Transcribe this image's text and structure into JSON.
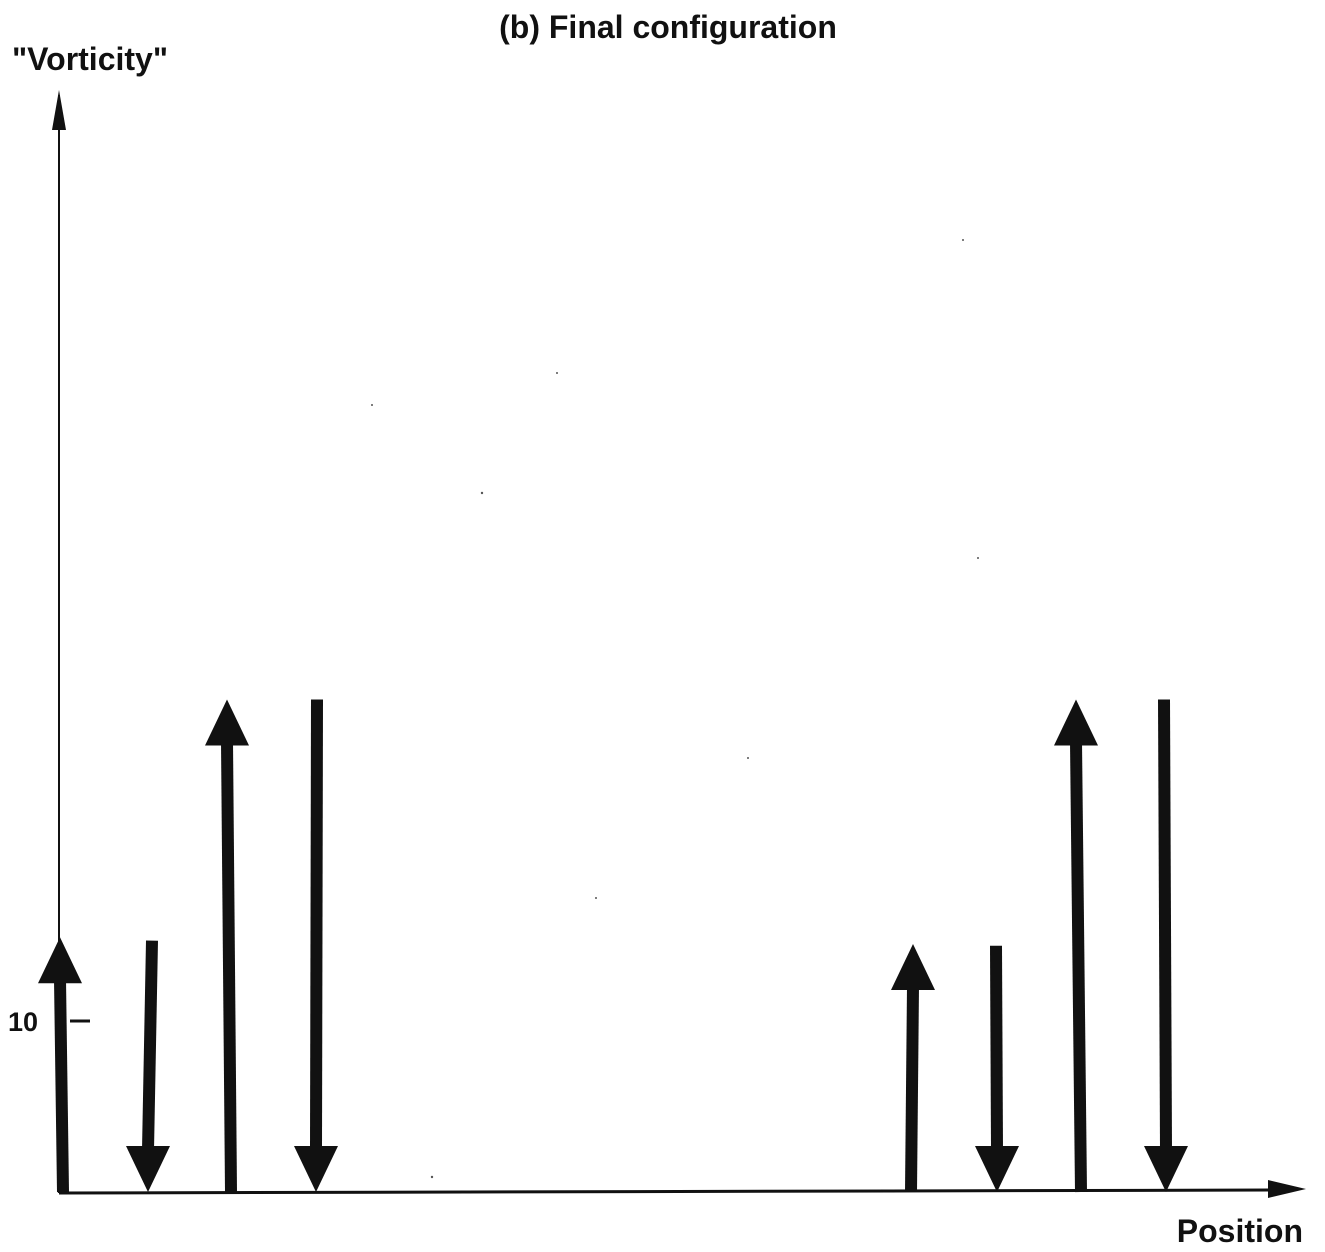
{
  "title": "(b) Final configuration",
  "y_axis": {
    "label": "\"Vorticity\"",
    "tick_label": "10",
    "tick_value": 10
  },
  "x_axis": {
    "label": "Position"
  },
  "vortices": [
    {
      "id": "v1",
      "direction": "up",
      "strength": 14.9
    },
    {
      "id": "v2",
      "direction": "down",
      "strength": 14.7
    },
    {
      "id": "v3",
      "direction": "up",
      "strength": 28.8
    },
    {
      "id": "v4",
      "direction": "down",
      "strength": 28.8
    },
    {
      "id": "v5",
      "direction": "up",
      "strength": 14.5
    },
    {
      "id": "v6",
      "direction": "down",
      "strength": 14.4
    },
    {
      "id": "v7",
      "direction": "up",
      "strength": 28.8
    },
    {
      "id": "v8",
      "direction": "down",
      "strength": 28.8
    }
  ],
  "colors": {
    "ink": "#111111",
    "background": "#ffffff"
  }
}
